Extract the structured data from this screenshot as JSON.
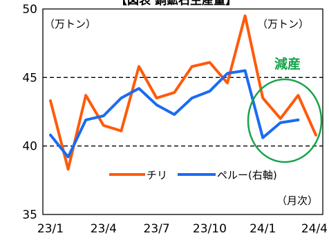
{
  "chart_data": {
    "type": "line",
    "title": "【図表 銅鉱石生産量】",
    "unit_left": "（万トン）",
    "unit_right": "（万トン）",
    "xlabel": "（月次）",
    "x": [
      "23/1",
      "23/2",
      "23/3",
      "23/4",
      "23/5",
      "23/6",
      "23/7",
      "23/8",
      "23/9",
      "23/10",
      "23/11",
      "23/12",
      "24/1",
      "24/2",
      "24/3",
      "24/4"
    ],
    "x_tick_labels": [
      "23/1",
      "23/4",
      "23/7",
      "23/10",
      "24/1",
      "24/4"
    ],
    "ylim": [
      35,
      50
    ],
    "y_ticks": [
      35,
      40,
      45,
      50
    ],
    "dashed_gridlines": [
      40,
      45
    ],
    "series": [
      {
        "name": "チリ",
        "color": "#ff5a0a",
        "values": [
          43.3,
          38.3,
          43.7,
          41.5,
          41.1,
          45.8,
          43.5,
          43.9,
          45.8,
          46.1,
          44.6,
          49.5,
          43.5,
          42.0,
          43.7,
          40.8
        ]
      },
      {
        "name": "ペルー(右軸)",
        "color": "#1a6bf2",
        "values": [
          40.8,
          39.2,
          41.9,
          42.2,
          43.5,
          44.2,
          43.0,
          42.3,
          43.5,
          44.0,
          45.3,
          45.5,
          40.6,
          41.7,
          41.9,
          null
        ]
      }
    ],
    "annotation": {
      "text": "減産",
      "color": "#16a34a"
    },
    "grid": "dashed at 40 and 45",
    "legend_placement": "lower-right inside plot"
  }
}
